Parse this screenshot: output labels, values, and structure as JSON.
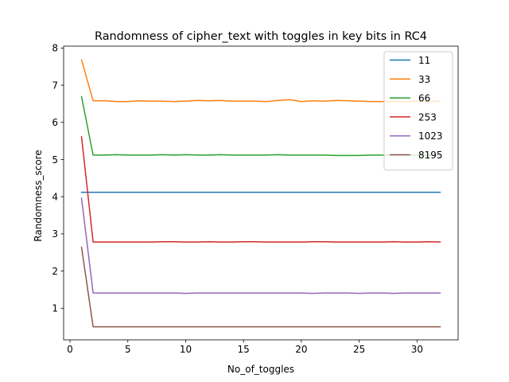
{
  "chart_data": {
    "type": "line",
    "title": "Randomness of cipher_text with toggles in key bits in RC4",
    "xlabel": "No_of_toggles",
    "ylabel": "Randomness_score",
    "xlim": [
      -0.55,
      33.55
    ],
    "ylim": [
      0.15,
      8.05
    ],
    "xticks": [
      0,
      5,
      10,
      15,
      20,
      25,
      30
    ],
    "yticks": [
      1,
      2,
      3,
      4,
      5,
      6,
      7,
      8
    ],
    "grid": false,
    "legend_position": "top-right",
    "x": [
      1,
      2,
      3,
      4,
      5,
      6,
      7,
      8,
      9,
      10,
      11,
      12,
      13,
      14,
      15,
      16,
      17,
      18,
      19,
      20,
      21,
      22,
      23,
      24,
      25,
      26,
      27,
      28,
      29,
      30,
      31,
      32
    ],
    "series": [
      {
        "name": "11",
        "color": "#1f77b4",
        "values": [
          4.12,
          4.12,
          4.12,
          4.12,
          4.12,
          4.12,
          4.12,
          4.12,
          4.12,
          4.12,
          4.12,
          4.12,
          4.12,
          4.12,
          4.12,
          4.12,
          4.12,
          4.12,
          4.12,
          4.12,
          4.12,
          4.12,
          4.12,
          4.12,
          4.12,
          4.12,
          4.12,
          4.12,
          4.12,
          4.12,
          4.12,
          4.12
        ]
      },
      {
        "name": "33",
        "color": "#ff7f0e",
        "values": [
          7.68,
          6.58,
          6.58,
          6.56,
          6.56,
          6.58,
          6.57,
          6.57,
          6.56,
          6.57,
          6.59,
          6.58,
          6.59,
          6.57,
          6.57,
          6.57,
          6.56,
          6.59,
          6.61,
          6.56,
          6.58,
          6.57,
          6.59,
          6.58,
          6.57,
          6.56,
          6.56,
          6.57,
          6.56,
          6.57,
          6.56,
          6.57
        ]
      },
      {
        "name": "66",
        "color": "#2ca02c",
        "values": [
          6.69,
          5.12,
          5.12,
          5.13,
          5.12,
          5.12,
          5.12,
          5.13,
          5.12,
          5.13,
          5.12,
          5.12,
          5.13,
          5.12,
          5.12,
          5.12,
          5.12,
          5.13,
          5.12,
          5.12,
          5.12,
          5.12,
          5.11,
          5.11,
          5.11,
          5.12,
          5.12,
          5.12,
          5.12,
          5.12,
          5.12,
          5.11
        ]
      },
      {
        "name": "253",
        "color": "#d62728",
        "values": [
          5.61,
          2.78,
          2.78,
          2.78,
          2.78,
          2.78,
          2.78,
          2.79,
          2.79,
          2.78,
          2.78,
          2.79,
          2.78,
          2.78,
          2.79,
          2.79,
          2.78,
          2.78,
          2.78,
          2.78,
          2.79,
          2.79,
          2.78,
          2.78,
          2.78,
          2.78,
          2.78,
          2.79,
          2.78,
          2.78,
          2.79,
          2.78
        ]
      },
      {
        "name": "1023",
        "color": "#9467bd",
        "values": [
          3.96,
          1.41,
          1.41,
          1.41,
          1.41,
          1.41,
          1.41,
          1.41,
          1.41,
          1.4,
          1.41,
          1.41,
          1.41,
          1.41,
          1.41,
          1.41,
          1.41,
          1.41,
          1.41,
          1.41,
          1.4,
          1.41,
          1.41,
          1.41,
          1.4,
          1.41,
          1.41,
          1.4,
          1.41,
          1.41,
          1.41,
          1.41
        ]
      },
      {
        "name": "8195",
        "color": "#8c564b",
        "values": [
          2.64,
          0.5,
          0.5,
          0.5,
          0.5,
          0.5,
          0.5,
          0.5,
          0.5,
          0.5,
          0.5,
          0.5,
          0.5,
          0.5,
          0.5,
          0.5,
          0.5,
          0.5,
          0.5,
          0.5,
          0.5,
          0.5,
          0.5,
          0.5,
          0.5,
          0.5,
          0.5,
          0.5,
          0.5,
          0.5,
          0.5,
          0.5
        ]
      }
    ]
  }
}
